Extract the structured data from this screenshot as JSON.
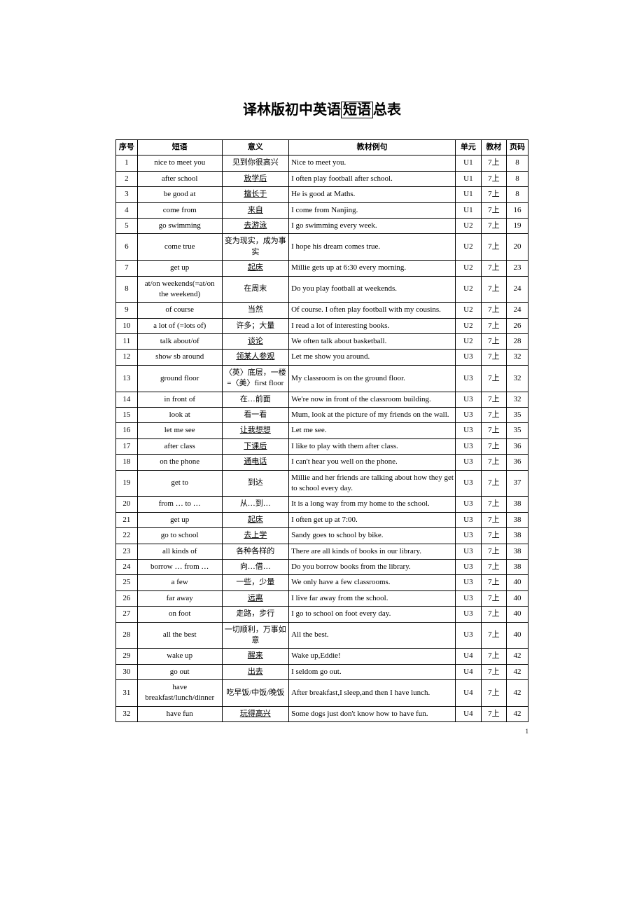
{
  "title_part1": "译林版初中英语",
  "title_part2": "短语",
  "title_part3": "总表",
  "page_number": "1",
  "headers": {
    "num": "序号",
    "phrase": "短语",
    "meaning": "意义",
    "example": "教材例句",
    "unit": "单元",
    "book": "教材",
    "page": "页码"
  },
  "rows": [
    {
      "num": "1",
      "phrase": "nice to meet you",
      "meaning": "见到你很高兴",
      "example": "Nice to meet you.",
      "unit": "U1",
      "book": "7上",
      "page": "8",
      "underline": false
    },
    {
      "num": "2",
      "phrase": "after school",
      "meaning": "放学后",
      "example": "I often play football after school.",
      "unit": "U1",
      "book": "7上",
      "page": "8",
      "underline": true
    },
    {
      "num": "3",
      "phrase": "be good at",
      "meaning": "擅长于",
      "example": "He is good at Maths.",
      "unit": "U1",
      "book": "7上",
      "page": "8",
      "underline": true
    },
    {
      "num": "4",
      "phrase": "come from",
      "meaning": "来自",
      "example": "I come from Nanjing.",
      "unit": "U1",
      "book": "7上",
      "page": "16",
      "underline": true
    },
    {
      "num": "5",
      "phrase": "go swimming",
      "meaning": "去游泳",
      "example": "I go swimming every week.",
      "unit": "U2",
      "book": "7上",
      "page": "19",
      "underline": true
    },
    {
      "num": "6",
      "phrase": "come true",
      "meaning": "变为现实，成为事实",
      "example": "I hope his dream comes true.",
      "unit": "U2",
      "book": "7上",
      "page": "20",
      "underline": false
    },
    {
      "num": "7",
      "phrase": "get up",
      "meaning": "起床",
      "example": "Millie gets up at 6:30 every morning.",
      "unit": "U2",
      "book": "7上",
      "page": "23",
      "underline": true
    },
    {
      "num": "8",
      "phrase": "at/on weekends(=at/on the weekend)",
      "meaning": "在周末",
      "example": "Do you play football at weekends.",
      "unit": "U2",
      "book": "7上",
      "page": "24",
      "underline": false
    },
    {
      "num": "9",
      "phrase": "of course",
      "meaning": "当然",
      "example": "Of course. I often play football with my cousins.",
      "unit": "U2",
      "book": "7上",
      "page": "24",
      "underline": false
    },
    {
      "num": "10",
      "phrase": "a lot of (=lots of)",
      "meaning": "许多；大量",
      "example": "I read a lot of interesting books.",
      "unit": "U2",
      "book": "7上",
      "page": "26",
      "underline": false
    },
    {
      "num": "11",
      "phrase": "talk about/of",
      "meaning": "谈论",
      "example": "We often talk about basketball.",
      "unit": "U2",
      "book": "7上",
      "page": "28",
      "underline": true
    },
    {
      "num": "12",
      "phrase": "show sb around",
      "meaning": "领某人参观",
      "example": "Let me show you around.",
      "unit": "U3",
      "book": "7上",
      "page": "32",
      "underline": true
    },
    {
      "num": "13",
      "phrase": "ground floor",
      "meaning": "〈英〉底层，一楼 =〈美〉first floor",
      "example": "My classroom is on the ground floor.",
      "unit": "U3",
      "book": "7上",
      "page": "32",
      "underline": false
    },
    {
      "num": "14",
      "phrase": "in front of",
      "meaning": "在…前面",
      "example": "We're now in front of the classroom building.",
      "unit": "U3",
      "book": "7上",
      "page": "32",
      "underline": false
    },
    {
      "num": "15",
      "phrase": "look at",
      "meaning": "看一看",
      "example": "Mum, look at the picture of my friends on the wall.",
      "unit": "U3",
      "book": "7上",
      "page": "35",
      "underline": false
    },
    {
      "num": "16",
      "phrase": "let me see",
      "meaning": "让我想想",
      "example": "Let  me see.",
      "unit": "U3",
      "book": "7上",
      "page": "35",
      "underline": true
    },
    {
      "num": "17",
      "phrase": "after class",
      "meaning": "下课后",
      "example": "I like to play with them after class.",
      "unit": "U3",
      "book": "7上",
      "page": "36",
      "underline": true
    },
    {
      "num": "18",
      "phrase": "on the phone",
      "meaning": "通电话",
      "example": "I can't hear you well on the phone.",
      "unit": "U3",
      "book": "7上",
      "page": "36",
      "underline": true
    },
    {
      "num": "19",
      "phrase": "get to",
      "meaning": "到达",
      "example": "Millie and her friends are talking about how they get to school every day.",
      "unit": "U3",
      "book": "7上",
      "page": "37",
      "underline": false
    },
    {
      "num": "20",
      "phrase": "from … to …",
      "meaning": "从…到…",
      "example": "It is a long way from my home to the school.",
      "unit": "U3",
      "book": "7上",
      "page": "38",
      "underline": false
    },
    {
      "num": "21",
      "phrase": "get up",
      "meaning": "起床",
      "example": "I often get up at 7:00.",
      "unit": "U3",
      "book": "7上",
      "page": "38",
      "underline": true
    },
    {
      "num": "22",
      "phrase": "go to school",
      "meaning": "去上学",
      "example": "Sandy goes to school by bike.",
      "unit": "U3",
      "book": "7上",
      "page": "38",
      "underline": true
    },
    {
      "num": "23",
      "phrase": "all kinds of",
      "meaning": "各种各样的",
      "example": "There are all kinds of books in our library.",
      "unit": "U3",
      "book": "7上",
      "page": "38",
      "underline": false
    },
    {
      "num": "24",
      "phrase": "borrow … from …",
      "meaning": "向…借…",
      "example": "Do you borrow books from the library.",
      "unit": "U3",
      "book": "7上",
      "page": "38",
      "underline": false
    },
    {
      "num": "25",
      "phrase": "a few",
      "meaning": "一些，少量",
      "example": "We only have a few classrooms.",
      "unit": "U3",
      "book": "7上",
      "page": "40",
      "underline": false
    },
    {
      "num": "26",
      "phrase": "far away",
      "meaning": "远离",
      "example": "I live far away from the school.",
      "unit": "U3",
      "book": "7上",
      "page": "40",
      "underline": true
    },
    {
      "num": "27",
      "phrase": "on foot",
      "meaning": "走路，步行",
      "example": "I go to school on foot every day.",
      "unit": "U3",
      "book": "7上",
      "page": "40",
      "underline": false
    },
    {
      "num": "28",
      "phrase": "all the best",
      "meaning": "一切顺利，万事如意",
      "example": "All the best.",
      "unit": "U3",
      "book": "7上",
      "page": "40",
      "underline": false
    },
    {
      "num": "29",
      "phrase": "wake up",
      "meaning": "醒来",
      "example": "Wake up,Eddie!",
      "unit": "U4",
      "book": "7上",
      "page": "42",
      "underline": true
    },
    {
      "num": "30",
      "phrase": "go out",
      "meaning": "出去",
      "example": "I seldom go out.",
      "unit": "U4",
      "book": "7上",
      "page": "42",
      "underline": true
    },
    {
      "num": "31",
      "phrase": "have breakfast/lunch/dinner",
      "meaning": "吃早饭/中饭/晚饭",
      "example": "After breakfast,I sleep,and then I have lunch.",
      "unit": "U4",
      "book": "7上",
      "page": "42",
      "underline": false
    },
    {
      "num": "32",
      "phrase": "have fun",
      "meaning": "玩得高兴",
      "example": "Some dogs just don't know how to have fun.",
      "unit": "U4",
      "book": "7上",
      "page": "42",
      "underline": true
    }
  ]
}
